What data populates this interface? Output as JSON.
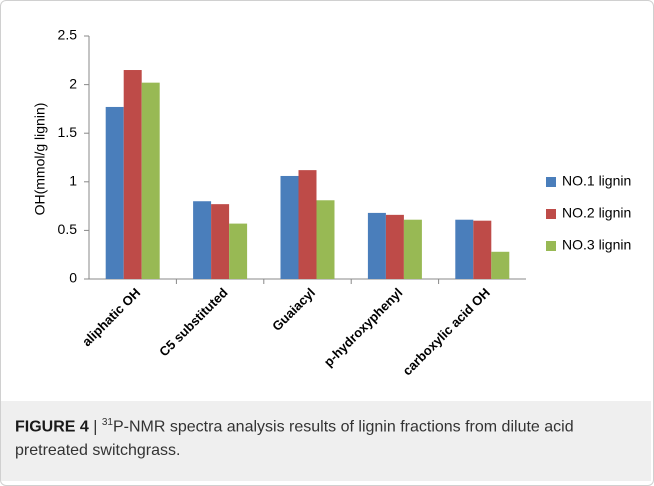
{
  "chart_data": {
    "type": "bar",
    "y_label": "OH(mmol/g lignin)",
    "categories": [
      "aliphatic OH",
      "C5 substituted",
      "Guaiacyl",
      "p-hydroxyphenyl",
      "carboxylic acid OH"
    ],
    "series": [
      {
        "name": "NO.1 lignin",
        "color": "#4a7ebb",
        "values": [
          1.77,
          0.8,
          1.06,
          0.68,
          0.61
        ]
      },
      {
        "name": "NO.2 lignin",
        "color": "#be4b48",
        "values": [
          2.15,
          0.77,
          1.12,
          0.66,
          0.6
        ]
      },
      {
        "name": "NO.3 lignin",
        "color": "#98b954",
        "values": [
          2.02,
          0.57,
          0.81,
          0.61,
          0.28
        ]
      }
    ],
    "ylim": [
      0,
      2.5
    ],
    "yticks": [
      0,
      0.5,
      1,
      1.5,
      2,
      2.5
    ],
    "grid": false,
    "legend": "right"
  },
  "caption": {
    "label": "FIGURE 4",
    "separator": "|",
    "superscript": "31",
    "text": "P-NMR spectra analysis results of lignin fractions from dilute acid pretreated switchgrass."
  }
}
